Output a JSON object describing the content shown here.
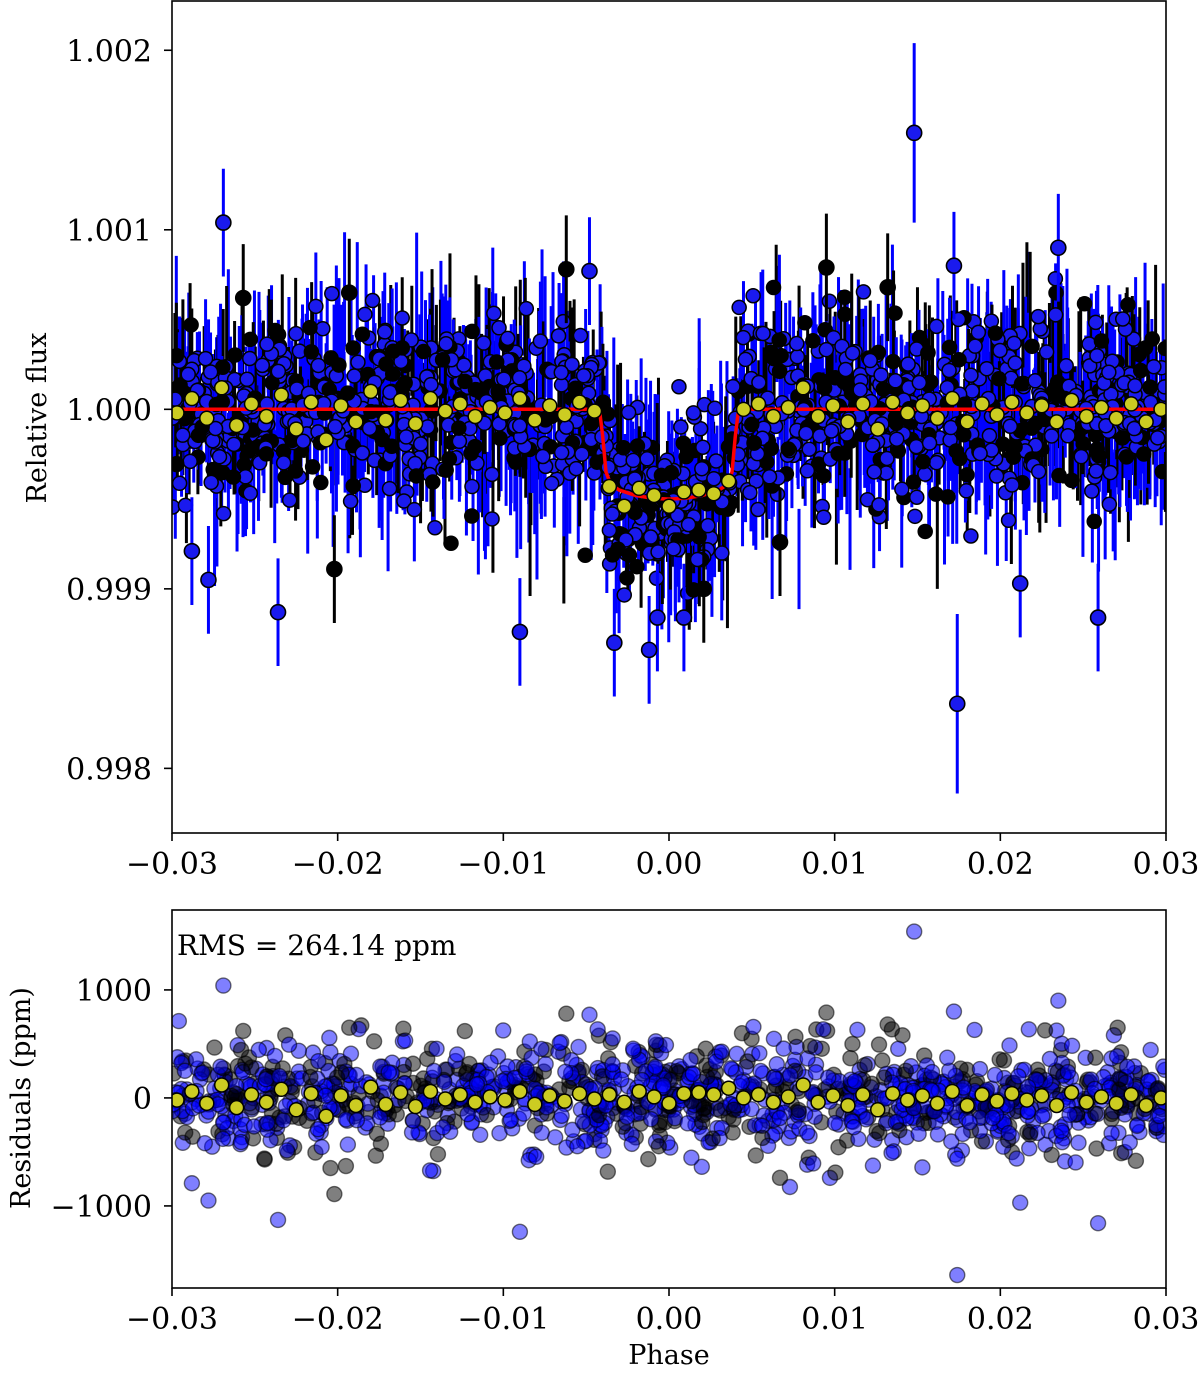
{
  "chart_data": [
    {
      "type": "scatter",
      "title": "",
      "xlabel": "",
      "ylabel": "Relative flux",
      "xlim": [
        -0.03,
        0.03
      ],
      "ylim": [
        0.99764,
        1.00228
      ],
      "xticks": [
        -0.03,
        -0.02,
        -0.01,
        0.0,
        0.01,
        0.02,
        0.03
      ],
      "xtick_labels": [
        "−0.03",
        "−0.02",
        "−0.01",
        "0.00",
        "0.01",
        "0.02",
        "0.03"
      ],
      "yticks": [
        0.998,
        0.999,
        1.0,
        1.001,
        1.002
      ],
      "ytick_labels": [
        "0.998",
        "0.999",
        "1.000",
        "1.001",
        "1.002"
      ],
      "grid": false,
      "series": [
        {
          "kind": "errorbar-scatter",
          "marker_color": "#1a1aee",
          "errorbar_color": "#0000ff",
          "points": [
            {
              "x": -0.0269,
              "y": 1.00104,
              "err": 0.0003
            },
            {
              "x": -0.0236,
              "y": 0.99887,
              "err": 0.0003
            },
            {
              "x": -0.0278,
              "y": 0.99905,
              "err": 0.0003
            },
            {
              "x": -0.0288,
              "y": 0.99921,
              "err": 0.0003
            },
            {
              "x": -0.009,
              "y": 0.99876,
              "err": 0.0003
            },
            {
              "x": -0.0033,
              "y": 0.9987,
              "err": 0.0003
            },
            {
              "x": -0.0012,
              "y": 0.99866,
              "err": 0.0003
            },
            {
              "x": -0.0007,
              "y": 0.99884,
              "err": 0.0003
            },
            {
              "x": 0.0009,
              "y": 0.99884,
              "err": 0.0003
            },
            {
              "x": 0.0148,
              "y": 1.00154,
              "err": 0.0005
            },
            {
              "x": 0.0174,
              "y": 0.99836,
              "err": 0.0005
            },
            {
              "x": 0.0235,
              "y": 1.0009,
              "err": 0.0003
            },
            {
              "x": 0.0259,
              "y": 0.99884,
              "err": 0.0003
            },
            {
              "x": 0.0212,
              "y": 0.99903,
              "err": 0.0003
            },
            {
              "x": -0.0048,
              "y": 1.00077,
              "err": 0.0003
            },
            {
              "x": 0.0172,
              "y": 1.0008,
              "err": 0.0003
            }
          ]
        },
        {
          "kind": "errorbar-scatter",
          "marker_color": "#000000",
          "errorbar_color": "#000000",
          "points": [
            {
              "x": -0.0257,
              "y": 1.00062,
              "err": 0.0003
            },
            {
              "x": -0.0193,
              "y": 1.00065,
              "err": 0.0003
            },
            {
              "x": -0.0202,
              "y": 0.99911,
              "err": 0.0003
            },
            {
              "x": -0.0062,
              "y": 1.00078,
              "err": 0.0003
            },
            {
              "x": 0.0095,
              "y": 1.00079,
              "err": 0.0003
            },
            {
              "x": 0.0021,
              "y": 0.999,
              "err": 0.0003
            },
            {
              "x": 0.0067,
              "y": 0.99926,
              "err": 0.0003
            },
            {
              "x": 0.0132,
              "y": 1.00068,
              "err": 0.0003
            }
          ]
        },
        {
          "kind": "binned",
          "marker_color": "#cccc22",
          "points": [
            {
              "x": -0.0297,
              "y": 0.99998
            },
            {
              "x": -0.0288,
              "y": 1.00006
            },
            {
              "x": -0.0279,
              "y": 0.99995
            },
            {
              "x": -0.027,
              "y": 1.00012
            },
            {
              "x": -0.0261,
              "y": 0.99991
            },
            {
              "x": -0.0252,
              "y": 1.00003
            },
            {
              "x": -0.0243,
              "y": 0.99996
            },
            {
              "x": -0.0234,
              "y": 1.00008
            },
            {
              "x": -0.0225,
              "y": 0.99989
            },
            {
              "x": -0.0216,
              "y": 1.00004
            },
            {
              "x": -0.0207,
              "y": 0.99983
            },
            {
              "x": -0.0198,
              "y": 1.00002
            },
            {
              "x": -0.0189,
              "y": 0.99993
            },
            {
              "x": -0.018,
              "y": 1.0001
            },
            {
              "x": -0.0171,
              "y": 0.99994
            },
            {
              "x": -0.0162,
              "y": 1.00005
            },
            {
              "x": -0.0153,
              "y": 0.99992
            },
            {
              "x": -0.0144,
              "y": 1.00006
            },
            {
              "x": -0.0135,
              "y": 0.99999
            },
            {
              "x": -0.0126,
              "y": 1.00003
            },
            {
              "x": -0.0117,
              "y": 0.99996
            },
            {
              "x": -0.0108,
              "y": 1.00001
            },
            {
              "x": -0.0099,
              "y": 0.99998
            },
            {
              "x": -0.009,
              "y": 1.00006
            },
            {
              "x": -0.0081,
              "y": 0.99994
            },
            {
              "x": -0.0072,
              "y": 1.00002
            },
            {
              "x": -0.0063,
              "y": 0.99997
            },
            {
              "x": -0.0054,
              "y": 1.00004
            },
            {
              "x": -0.0045,
              "y": 0.99999
            },
            {
              "x": -0.0036,
              "y": 0.99957
            },
            {
              "x": -0.0027,
              "y": 0.99946
            },
            {
              "x": -0.0018,
              "y": 0.99956
            },
            {
              "x": -0.0009,
              "y": 0.99952
            },
            {
              "x": 0.0,
              "y": 0.99946
            },
            {
              "x": 0.0009,
              "y": 0.99954
            },
            {
              "x": 0.0018,
              "y": 0.99955
            },
            {
              "x": 0.0027,
              "y": 0.99953
            },
            {
              "x": 0.0036,
              "y": 0.9996
            },
            {
              "x": 0.0045,
              "y": 1.0
            },
            {
              "x": 0.0054,
              "y": 1.00003
            },
            {
              "x": 0.0063,
              "y": 0.99996
            },
            {
              "x": 0.0072,
              "y": 1.00001
            },
            {
              "x": 0.0081,
              "y": 1.00012
            },
            {
              "x": 0.009,
              "y": 0.99996
            },
            {
              "x": 0.0099,
              "y": 1.00002
            },
            {
              "x": 0.0108,
              "y": 0.99993
            },
            {
              "x": 0.0117,
              "y": 1.00003
            },
            {
              "x": 0.0126,
              "y": 0.99989
            },
            {
              "x": 0.0135,
              "y": 1.00004
            },
            {
              "x": 0.0144,
              "y": 0.99998
            },
            {
              "x": 0.0153,
              "y": 1.00002
            },
            {
              "x": 0.0162,
              "y": 0.99995
            },
            {
              "x": 0.0171,
              "y": 1.00006
            },
            {
              "x": 0.018,
              "y": 0.99993
            },
            {
              "x": 0.0189,
              "y": 1.00003
            },
            {
              "x": 0.0198,
              "y": 0.99997
            },
            {
              "x": 0.0207,
              "y": 1.00004
            },
            {
              "x": 0.0216,
              "y": 0.99998
            },
            {
              "x": 0.0225,
              "y": 1.00002
            },
            {
              "x": 0.0234,
              "y": 0.99993
            },
            {
              "x": 0.0243,
              "y": 1.00005
            },
            {
              "x": 0.0252,
              "y": 0.99996
            },
            {
              "x": 0.0261,
              "y": 1.00001
            },
            {
              "x": 0.027,
              "y": 0.99995
            },
            {
              "x": 0.0279,
              "y": 1.00003
            },
            {
              "x": 0.0288,
              "y": 0.99993
            },
            {
              "x": 0.0297,
              "y": 1.0
            }
          ]
        },
        {
          "kind": "model-line",
          "color": "#ff0000",
          "points": [
            {
              "x": -0.03,
              "y": 1.0
            },
            {
              "x": -0.0042,
              "y": 1.0
            },
            {
              "x": -0.004,
              "y": 0.99985
            },
            {
              "x": -0.0038,
              "y": 0.99965
            },
            {
              "x": -0.0035,
              "y": 0.99958
            },
            {
              "x": -0.003,
              "y": 0.99955
            },
            {
              "x": -0.002,
              "y": 0.99952
            },
            {
              "x": -0.001,
              "y": 0.999505
            },
            {
              "x": 0.0,
              "y": 0.9995
            },
            {
              "x": 0.001,
              "y": 0.999505
            },
            {
              "x": 0.002,
              "y": 0.99952
            },
            {
              "x": 0.003,
              "y": 0.99955
            },
            {
              "x": 0.0035,
              "y": 0.99958
            },
            {
              "x": 0.0038,
              "y": 0.99965
            },
            {
              "x": 0.004,
              "y": 0.99985
            },
            {
              "x": 0.0042,
              "y": 1.0
            },
            {
              "x": 0.03,
              "y": 1.0
            }
          ]
        }
      ]
    },
    {
      "type": "scatter",
      "title": "",
      "xlabel": "Phase",
      "ylabel": "Residuals (ppm)",
      "xlim": [
        -0.03,
        0.03
      ],
      "ylim": [
        -1760,
        1740
      ],
      "xticks": [
        -0.03,
        -0.02,
        -0.01,
        0.0,
        0.01,
        0.02,
        0.03
      ],
      "xtick_labels": [
        "−0.03",
        "−0.02",
        "−0.01",
        "0.00",
        "0.01",
        "0.02",
        "0.03"
      ],
      "yticks": [
        -1000,
        0,
        1000
      ],
      "ytick_labels": [
        "−1000",
        "0",
        "1000"
      ],
      "annotation": "RMS = 264.14 ppm",
      "grid": false,
      "series": [
        {
          "kind": "scatter",
          "marker_color": "#0000ff",
          "alpha": 0.5,
          "points": [
            {
              "x": 0.0148,
              "y": 1540
            },
            {
              "x": 0.0174,
              "y": -1640
            },
            {
              "x": -0.0269,
              "y": 1040
            },
            {
              "x": -0.0236,
              "y": -1130
            },
            {
              "x": -0.009,
              "y": -1240
            },
            {
              "x": 0.0259,
              "y": -1160
            },
            {
              "x": 0.0235,
              "y": 900
            },
            {
              "x": 0.0212,
              "y": -970
            },
            {
              "x": -0.0278,
              "y": -950
            },
            {
              "x": -0.0288,
              "y": -790
            },
            {
              "x": -0.0048,
              "y": 770
            },
            {
              "x": 0.0172,
              "y": 800
            }
          ]
        },
        {
          "kind": "scatter",
          "marker_color": "#000000",
          "alpha": 0.5,
          "points": [
            {
              "x": -0.0257,
              "y": 620
            },
            {
              "x": -0.0193,
              "y": 650
            },
            {
              "x": -0.0202,
              "y": -890
            },
            {
              "x": -0.0062,
              "y": 780
            },
            {
              "x": 0.0095,
              "y": 790
            },
            {
              "x": 0.0021,
              "y": -100
            },
            {
              "x": 0.0067,
              "y": -740
            },
            {
              "x": 0.0132,
              "y": 680
            }
          ]
        },
        {
          "kind": "binned",
          "marker_color": "#cccc22",
          "points": [
            {
              "x": -0.0297,
              "y": -20
            },
            {
              "x": -0.0288,
              "y": 60
            },
            {
              "x": -0.0279,
              "y": -50
            },
            {
              "x": -0.027,
              "y": 120
            },
            {
              "x": -0.0261,
              "y": -90
            },
            {
              "x": -0.0252,
              "y": 30
            },
            {
              "x": -0.0243,
              "y": -40
            },
            {
              "x": -0.0234,
              "y": 80
            },
            {
              "x": -0.0225,
              "y": -110
            },
            {
              "x": -0.0216,
              "y": 40
            },
            {
              "x": -0.0207,
              "y": -170
            },
            {
              "x": -0.0198,
              "y": 20
            },
            {
              "x": -0.0189,
              "y": -70
            },
            {
              "x": -0.018,
              "y": 100
            },
            {
              "x": -0.0171,
              "y": -60
            },
            {
              "x": -0.0162,
              "y": 50
            },
            {
              "x": -0.0153,
              "y": -80
            },
            {
              "x": -0.0144,
              "y": 60
            },
            {
              "x": -0.0135,
              "y": -10
            },
            {
              "x": -0.0126,
              "y": 30
            },
            {
              "x": -0.0117,
              "y": -40
            },
            {
              "x": -0.0108,
              "y": 10
            },
            {
              "x": -0.0099,
              "y": -20
            },
            {
              "x": -0.009,
              "y": 60
            },
            {
              "x": -0.0081,
              "y": -60
            },
            {
              "x": -0.0072,
              "y": 20
            },
            {
              "x": -0.0063,
              "y": -30
            },
            {
              "x": -0.0054,
              "y": 40
            },
            {
              "x": -0.0045,
              "y": -10
            },
            {
              "x": -0.0036,
              "y": 30
            },
            {
              "x": -0.0027,
              "y": -40
            },
            {
              "x": -0.0018,
              "y": 60
            },
            {
              "x": -0.0009,
              "y": 10
            },
            {
              "x": 0.0,
              "y": -50
            },
            {
              "x": 0.0009,
              "y": 40
            },
            {
              "x": 0.0018,
              "y": 50
            },
            {
              "x": 0.0027,
              "y": 30
            },
            {
              "x": 0.0036,
              "y": 90
            },
            {
              "x": 0.0045,
              "y": 0
            },
            {
              "x": 0.0054,
              "y": 30
            },
            {
              "x": 0.0063,
              "y": -40
            },
            {
              "x": 0.0072,
              "y": 10
            },
            {
              "x": 0.0081,
              "y": 120
            },
            {
              "x": 0.009,
              "y": -40
            },
            {
              "x": 0.0099,
              "y": 20
            },
            {
              "x": 0.0108,
              "y": -70
            },
            {
              "x": 0.0117,
              "y": 30
            },
            {
              "x": 0.0126,
              "y": -110
            },
            {
              "x": 0.0135,
              "y": 40
            },
            {
              "x": 0.0144,
              "y": -20
            },
            {
              "x": 0.0153,
              "y": 20
            },
            {
              "x": 0.0162,
              "y": -50
            },
            {
              "x": 0.0171,
              "y": 60
            },
            {
              "x": 0.018,
              "y": -70
            },
            {
              "x": 0.0189,
              "y": 30
            },
            {
              "x": 0.0198,
              "y": -30
            },
            {
              "x": 0.0207,
              "y": 40
            },
            {
              "x": 0.0216,
              "y": -20
            },
            {
              "x": 0.0225,
              "y": 20
            },
            {
              "x": 0.0234,
              "y": -70
            },
            {
              "x": 0.0243,
              "y": 50
            },
            {
              "x": 0.0252,
              "y": -40
            },
            {
              "x": 0.0261,
              "y": 10
            },
            {
              "x": 0.027,
              "y": -50
            },
            {
              "x": 0.0279,
              "y": 30
            },
            {
              "x": 0.0288,
              "y": -70
            },
            {
              "x": 0.0297,
              "y": 0
            }
          ]
        }
      ]
    }
  ]
}
